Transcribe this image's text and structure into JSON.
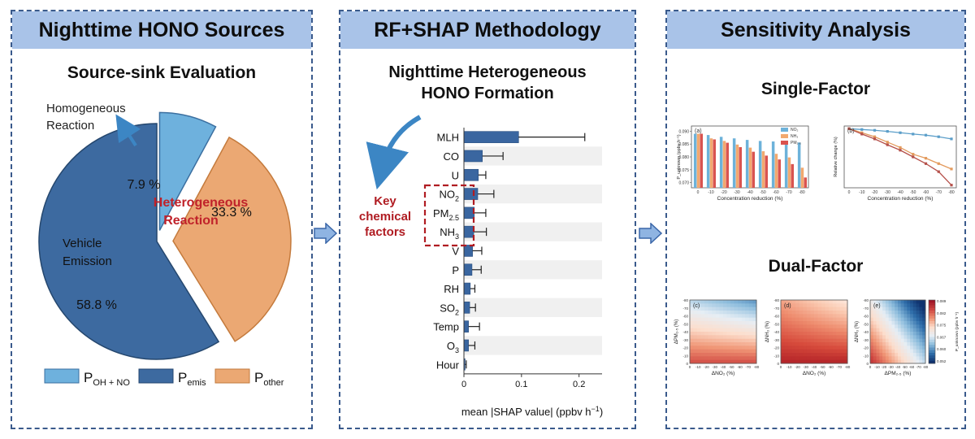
{
  "panels": {
    "sources": {
      "header": "Nighttime HONO Sources",
      "subtitle": "Source-sink Evaluation",
      "callout_homogeneous": [
        "Homogeneous",
        "Reaction"
      ],
      "callout_heterogeneous": [
        "Heterogeneous",
        "Reaction"
      ],
      "callout_vehicle": [
        "Vehicle",
        "Emission"
      ],
      "legend": [
        {
          "main": "P",
          "sub": "OH + NO",
          "color": "#6eb1dd"
        },
        {
          "main": "P",
          "sub": "emis",
          "color": "#3d6aa0"
        },
        {
          "main": "P",
          "sub": "other",
          "color": "#eba873"
        }
      ]
    },
    "method": {
      "header": "RF+SHAP Methodology",
      "subtitle": [
        "Nighttime Heterogeneous",
        "HONO Formation"
      ],
      "key_label": [
        "Key",
        "chemical",
        "factors"
      ]
    },
    "sensitivity": {
      "header": "Sensitivity Analysis",
      "single_title": "Single-Factor",
      "dual_title": "Dual-Factor"
    }
  },
  "chart_data": [
    {
      "type": "pie",
      "slices": [
        {
          "label": "P_OH+NO",
          "value": 7.9,
          "text": "7.9 %",
          "color": "#6eb1dd"
        },
        {
          "label": "P_other",
          "value": 33.3,
          "text": "33.3 %",
          "color": "#eba873"
        },
        {
          "label": "P_emis",
          "value": 58.8,
          "text": "58.8 %",
          "color": "#3d6aa0"
        }
      ]
    },
    {
      "type": "bar",
      "orientation": "horizontal",
      "categories": [
        {
          "main": "MLH",
          "sub": ""
        },
        {
          "main": "CO",
          "sub": ""
        },
        {
          "main": "U",
          "sub": ""
        },
        {
          "main": "NO",
          "sub": "2"
        },
        {
          "main": "PM",
          "sub": "2.5"
        },
        {
          "main": "NH",
          "sub": "3"
        },
        {
          "main": "V",
          "sub": ""
        },
        {
          "main": "P",
          "sub": ""
        },
        {
          "main": "RH",
          "sub": ""
        },
        {
          "main": "SO",
          "sub": "2"
        },
        {
          "main": "Temp",
          "sub": ""
        },
        {
          "main": "O",
          "sub": "3"
        },
        {
          "main": "Hour",
          "sub": ""
        }
      ],
      "values": [
        0.095,
        0.032,
        0.025,
        0.024,
        0.018,
        0.017,
        0.015,
        0.014,
        0.011,
        0.01,
        0.008,
        0.008,
        0.002
      ],
      "errors": [
        0.115,
        0.036,
        0.013,
        0.028,
        0.02,
        0.022,
        0.016,
        0.016,
        0.008,
        0.01,
        0.019,
        0.011,
        0.002
      ],
      "xlim": [
        0,
        0.24
      ],
      "xticks": [
        "0",
        "0.1",
        "0.2"
      ],
      "xtick_values": [
        0,
        0.1,
        0.2
      ],
      "xlabel": "mean |SHAP value| (ppbv h⁻¹)"
    },
    {
      "type": "bar",
      "panel_label": "(a)",
      "categories": [
        "0",
        "-10",
        "-20",
        "-30",
        "-40",
        "-50",
        "-60",
        "-70",
        "-80"
      ],
      "series": [
        {
          "name": "NO₂",
          "color": "#6db2da",
          "values": [
            0.089,
            0.0885,
            0.0878,
            0.0872,
            0.0866,
            0.0862,
            0.086,
            0.0858,
            0.0856
          ]
        },
        {
          "name": "NH₃",
          "color": "#f2a96f",
          "values": [
            0.089,
            0.0872,
            0.0862,
            0.0848,
            0.0836,
            0.0822,
            0.0812,
            0.0798,
            0.0758
          ]
        },
        {
          "name": "PM₂.₅",
          "color": "#d9534f",
          "values": [
            0.089,
            0.0868,
            0.0855,
            0.0838,
            0.082,
            0.0805,
            0.079,
            0.0772,
            0.072
          ]
        }
      ],
      "ylim": [
        0.068,
        0.092
      ],
      "yticks": [
        "0.070",
        "0.075",
        "0.080",
        "0.085",
        "0.090"
      ],
      "xlabel": "Concentration reduction (%)",
      "ylabel": "P_unknown (ppbv h⁻¹)"
    },
    {
      "type": "line",
      "panel_label": "(b)",
      "x": [
        "0",
        "-10",
        "-20",
        "-30",
        "-40",
        "-50",
        "-60",
        "-70",
        "-80"
      ],
      "series": [
        {
          "name": "NO₂",
          "color": "#5b9ec9",
          "values": [
            0,
            -0.3,
            -0.6,
            -1.0,
            -1.5,
            -2.0,
            -2.4,
            -3.0,
            -3.8
          ]
        },
        {
          "name": "NH₃",
          "color": "#e39a5c",
          "values": [
            0,
            -1.5,
            -3.0,
            -5.0,
            -7.0,
            -9.5,
            -11.0,
            -13.0,
            -15.0
          ]
        },
        {
          "name": "PM₂.₅",
          "color": "#b5504a",
          "values": [
            0,
            -2.0,
            -3.8,
            -6.0,
            -8.0,
            -10.5,
            -13.0,
            -16.0,
            -21.0
          ]
        }
      ],
      "ylim": [
        -22,
        1
      ],
      "xlabel": "Concentration reduction (%)",
      "ylabel": "Relative change (%)"
    },
    {
      "type": "heatmap",
      "panel_label": "(c)",
      "xlabel": "ΔNO₂ (%)",
      "ylabel": "ΔPM₂.₅ (%)",
      "xticks": [
        "0",
        "-10",
        "-20",
        "-30",
        "-40",
        "-50",
        "-60",
        "-70",
        "-80"
      ],
      "yticks": [
        "-80",
        "-70",
        "-60",
        "-50",
        "-40",
        "-30",
        "-20",
        "-10",
        "0"
      ]
    },
    {
      "type": "heatmap",
      "panel_label": "(d)",
      "xlabel": "ΔNO₂ (%)",
      "ylabel": "ΔNH₃ (%)",
      "xticks": [
        "0",
        "-10",
        "-20",
        "-30",
        "-40",
        "-50",
        "-60",
        "-70",
        "-80"
      ],
      "yticks": [
        "-80",
        "-70",
        "-60",
        "-50",
        "-40",
        "-30",
        "-20",
        "-10",
        "0"
      ]
    },
    {
      "type": "heatmap",
      "panel_label": "(e)",
      "xlabel": "ΔPM₂.₅ (%)",
      "ylabel": "ΔNH₃ (%)",
      "xticks": [
        "0",
        "-10",
        "-20",
        "-30",
        "-40",
        "-50",
        "-60",
        "-70",
        "-80"
      ],
      "yticks": [
        "-80",
        "-70",
        "-60",
        "-50",
        "-40",
        "-30",
        "-20",
        "-10",
        "0"
      ],
      "colorbar_ticks": [
        "0.089",
        "0.082",
        "0.075",
        "0.067",
        "0.060",
        "0.052"
      ],
      "colorbar_label": "P_unknown (ppbv h⁻¹)"
    }
  ]
}
